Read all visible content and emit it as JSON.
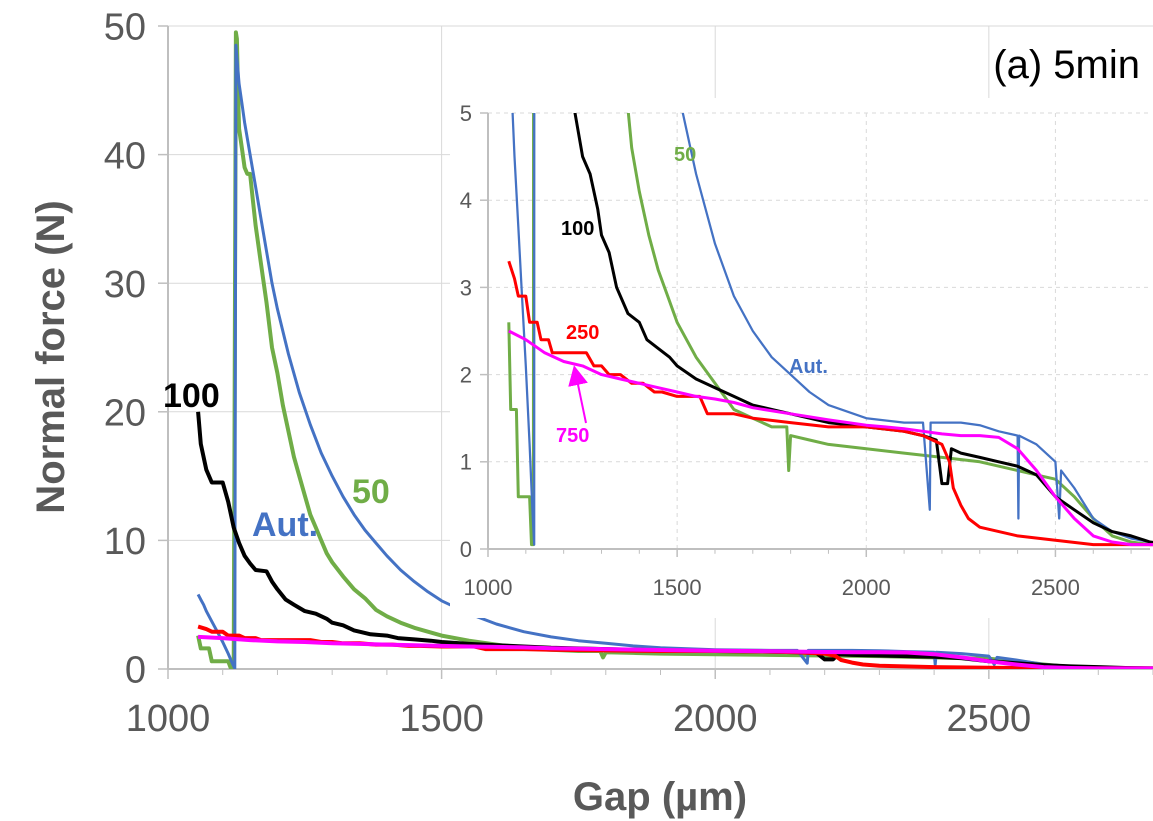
{
  "chart_data": [
    {
      "type": "line",
      "panel": "main",
      "title": "(a) 5min",
      "xlabel": "Gap (µm)",
      "ylabel": "Normal force (N)",
      "xlim": [
        1000,
        2800
      ],
      "ylim": [
        0,
        50
      ],
      "xticks": [
        1000,
        1500,
        2000,
        2500
      ],
      "yticks": [
        0,
        10,
        20,
        30,
        40,
        50
      ],
      "grid": true,
      "legend": "none (series labelled inline)",
      "series": [
        {
          "name": "50",
          "color": "#70ad47",
          "width": 4,
          "x": [
            1055,
            1060,
            1065,
            1070,
            1075,
            1080,
            1085,
            1090,
            1095,
            1100,
            1105,
            1110,
            1115,
            1120,
            1124,
            1126,
            1128,
            1130,
            1135,
            1140,
            1145,
            1150,
            1155,
            1160,
            1170,
            1180,
            1190,
            1200,
            1210,
            1220,
            1230,
            1240,
            1250,
            1260,
            1270,
            1280,
            1290,
            1300,
            1320,
            1340,
            1360,
            1380,
            1400,
            1425,
            1450,
            1475,
            1500,
            1550,
            1600,
            1650,
            1700,
            1750,
            1790,
            1795,
            1800,
            1850,
            1900,
            2000,
            2100,
            2200,
            2300,
            2400,
            2450,
            2500,
            2550,
            2600,
            2650,
            2700,
            2750,
            2800
          ],
          "y": [
            2.6,
            1.6,
            1.6,
            1.6,
            1.6,
            0.6,
            0.6,
            0.6,
            0.6,
            0.6,
            0.6,
            0.6,
            0.05,
            0.05,
            49.5,
            49,
            45,
            42,
            40.5,
            39,
            38.5,
            38.5,
            36.5,
            34.5,
            31.5,
            28.5,
            25,
            23,
            20.5,
            18.5,
            16.5,
            15,
            13.5,
            12,
            11,
            10,
            9,
            8.3,
            7.2,
            6.2,
            5.5,
            4.6,
            4.1,
            3.6,
            3.2,
            2.9,
            2.6,
            2.2,
            1.9,
            1.6,
            1.5,
            1.4,
            1.4,
            0.9,
            1.3,
            1.25,
            1.2,
            1.15,
            1.1,
            1.05,
            1.0,
            0.9,
            0.85,
            0.8,
            0.6,
            0.35,
            0.15,
            0.08,
            0.05,
            0.05
          ]
        },
        {
          "name": "Aut.",
          "color": "#4472c4",
          "width": 3,
          "x": [
            1055,
            1060,
            1065,
            1070,
            1080,
            1090,
            1100,
            1110,
            1118,
            1122,
            1124,
            1126,
            1128,
            1130,
            1135,
            1140,
            1150,
            1160,
            1170,
            1180,
            1190,
            1200,
            1220,
            1240,
            1260,
            1280,
            1300,
            1320,
            1340,
            1360,
            1380,
            1400,
            1425,
            1450,
            1475,
            1500,
            1550,
            1600,
            1650,
            1700,
            1750,
            1800,
            1850,
            1900,
            2000,
            2100,
            2150,
            2168,
            2170,
            2172,
            2200,
            2250,
            2300,
            2350,
            2400,
            2402,
            2404,
            2450,
            2500,
            2510,
            2515,
            2550,
            2600,
            2650,
            2700,
            2750,
            2800
          ],
          "y": [
            5.8,
            5.4,
            5.0,
            4.5,
            3.7,
            2.9,
            2.1,
            1.2,
            0.4,
            0.05,
            48.5,
            47.5,
            46.5,
            45.5,
            44,
            42.5,
            40,
            37.5,
            35,
            32.5,
            30,
            28,
            24.5,
            21.5,
            19,
            16.8,
            15,
            13.4,
            12,
            10.8,
            9.8,
            8.8,
            7.7,
            6.8,
            6.0,
            5.3,
            4.3,
            3.5,
            2.9,
            2.5,
            2.2,
            2.0,
            1.8,
            1.65,
            1.5,
            1.45,
            1.45,
            0.45,
            1.45,
            1.45,
            1.45,
            1.45,
            1.42,
            1.35,
            1.3,
            0.35,
            1.3,
            1.2,
            1.0,
            0.35,
            0.9,
            0.7,
            0.35,
            0.2,
            0.12,
            0.08,
            0.05
          ]
        },
        {
          "name": "100",
          "color": "#000000",
          "width": 4,
          "x": [
            1055,
            1060,
            1070,
            1080,
            1100,
            1110,
            1120,
            1130,
            1140,
            1150,
            1160,
            1180,
            1190,
            1200,
            1215,
            1230,
            1250,
            1270,
            1290,
            1300,
            1320,
            1340,
            1350,
            1370,
            1400,
            1420,
            1450,
            1480,
            1500,
            1550,
            1600,
            1650,
            1700,
            1800,
            1900,
            2000,
            2100,
            2150,
            2185,
            2200,
            2215,
            2225,
            2250,
            2300,
            2350,
            2400,
            2450,
            2500,
            2550,
            2600,
            2650,
            2700,
            2750,
            2800
          ],
          "y": [
            20,
            17.5,
            15.5,
            14.5,
            14.5,
            13,
            11,
            9.8,
            8.8,
            8.2,
            7.7,
            7.6,
            6.8,
            6.2,
            5.4,
            5.0,
            4.5,
            4.3,
            3.9,
            3.6,
            3.4,
            3.0,
            2.9,
            2.7,
            2.6,
            2.4,
            2.3,
            2.2,
            2.1,
            1.95,
            1.85,
            1.75,
            1.65,
            1.55,
            1.45,
            1.4,
            1.35,
            1.3,
            1.25,
            0.75,
            0.75,
            1.15,
            1.1,
            1.05,
            1.0,
            0.95,
            0.85,
            0.6,
            0.45,
            0.3,
            0.2,
            0.15,
            0.08,
            0.05
          ]
        },
        {
          "name": "250",
          "color": "#ff0000",
          "width": 4,
          "x": [
            1055,
            1070,
            1080,
            1100,
            1110,
            1130,
            1140,
            1160,
            1170,
            1260,
            1280,
            1300,
            1320,
            1350,
            1380,
            1410,
            1440,
            1460,
            1500,
            1560,
            1580,
            1650,
            1700,
            1800,
            1900,
            2000,
            2100,
            2150,
            2200,
            2220,
            2230,
            2250,
            2270,
            2300,
            2400,
            2500,
            2600,
            2650,
            2800
          ],
          "y": [
            3.3,
            3.1,
            2.9,
            2.9,
            2.6,
            2.6,
            2.4,
            2.4,
            2.25,
            2.25,
            2.1,
            2.1,
            2.0,
            2.0,
            1.9,
            1.9,
            1.8,
            1.8,
            1.75,
            1.75,
            1.55,
            1.55,
            1.5,
            1.45,
            1.4,
            1.4,
            1.35,
            1.3,
            1.2,
            1.0,
            0.7,
            0.5,
            0.35,
            0.25,
            0.15,
            0.1,
            0.05,
            0.05,
            0.05
          ]
        },
        {
          "name": "750",
          "color": "#ff00ff",
          "width": 4,
          "x": [
            1055,
            1100,
            1150,
            1200,
            1250,
            1300,
            1350,
            1400,
            1450,
            1500,
            1550,
            1600,
            1650,
            1700,
            1800,
            1900,
            2000,
            2050,
            2100,
            2150,
            2200,
            2250,
            2300,
            2350,
            2400,
            2450,
            2500,
            2550,
            2600,
            2650,
            2700,
            2750,
            2800
          ],
          "y": [
            2.5,
            2.4,
            2.25,
            2.15,
            2.1,
            2.0,
            1.95,
            1.9,
            1.85,
            1.8,
            1.75,
            1.72,
            1.68,
            1.62,
            1.55,
            1.48,
            1.42,
            1.4,
            1.38,
            1.35,
            1.32,
            1.3,
            1.3,
            1.28,
            1.15,
            0.9,
            0.6,
            0.35,
            0.15,
            0.08,
            0.05,
            0.05,
            0.05
          ]
        }
      ],
      "labels": [
        {
          "text": "100",
          "series": "100",
          "color": "#000000"
        },
        {
          "text": "Aut.",
          "series": "Aut.",
          "color": "#4472c4"
        },
        {
          "text": "50",
          "series": "50",
          "color": "#70ad47"
        }
      ]
    },
    {
      "type": "line",
      "panel": "inset",
      "xlim": [
        1000,
        2750
      ],
      "ylim": [
        0,
        5
      ],
      "xticks": [
        1000,
        1500,
        2000,
        2500
      ],
      "yticks": [
        0,
        1,
        2,
        3,
        4,
        5
      ],
      "grid": true,
      "series_from": "main",
      "labels": [
        {
          "text": "50",
          "series": "50",
          "color": "#70ad47"
        },
        {
          "text": "100",
          "series": "100",
          "color": "#000000"
        },
        {
          "text": "250",
          "series": "250",
          "color": "#ff0000"
        },
        {
          "text": "Aut.",
          "series": "Aut.",
          "color": "#4472c4"
        },
        {
          "text": "750",
          "series": "750",
          "color": "#ff00ff"
        }
      ]
    }
  ]
}
